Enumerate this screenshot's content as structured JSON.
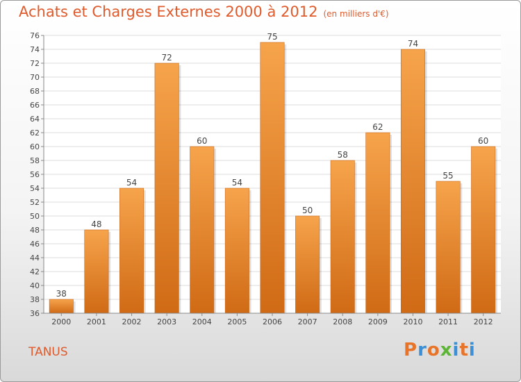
{
  "header": {
    "title": "Achats et Charges Externes 2000 à 2012",
    "subtitle": "(en milliers d'€)"
  },
  "footer": {
    "commune": "TANUS",
    "logo": [
      "P",
      "r",
      "o",
      "x",
      "i",
      "t",
      "i"
    ]
  },
  "colors": {
    "title": "#e05a2b",
    "bar_top": "#f6a44c",
    "bar_bottom": "#d06a15",
    "logo": [
      "#e8742a",
      "#3a8fd6",
      "#e8742a",
      "#5db535",
      "#3a8fd6",
      "#e8742a",
      "#3a8fd6"
    ]
  },
  "chart_data": {
    "type": "bar",
    "categories": [
      "2000",
      "2001",
      "2002",
      "2003",
      "2004",
      "2005",
      "2006",
      "2007",
      "2008",
      "2009",
      "2010",
      "2011",
      "2012"
    ],
    "values": [
      38,
      48,
      54,
      72,
      60,
      54,
      75,
      50,
      58,
      62,
      74,
      55,
      60
    ],
    "ylim": [
      36,
      76
    ],
    "yticks": [
      36,
      38,
      40,
      42,
      44,
      46,
      48,
      50,
      52,
      54,
      56,
      58,
      60,
      62,
      64,
      66,
      68,
      70,
      72,
      74,
      76
    ],
    "grid": true
  }
}
